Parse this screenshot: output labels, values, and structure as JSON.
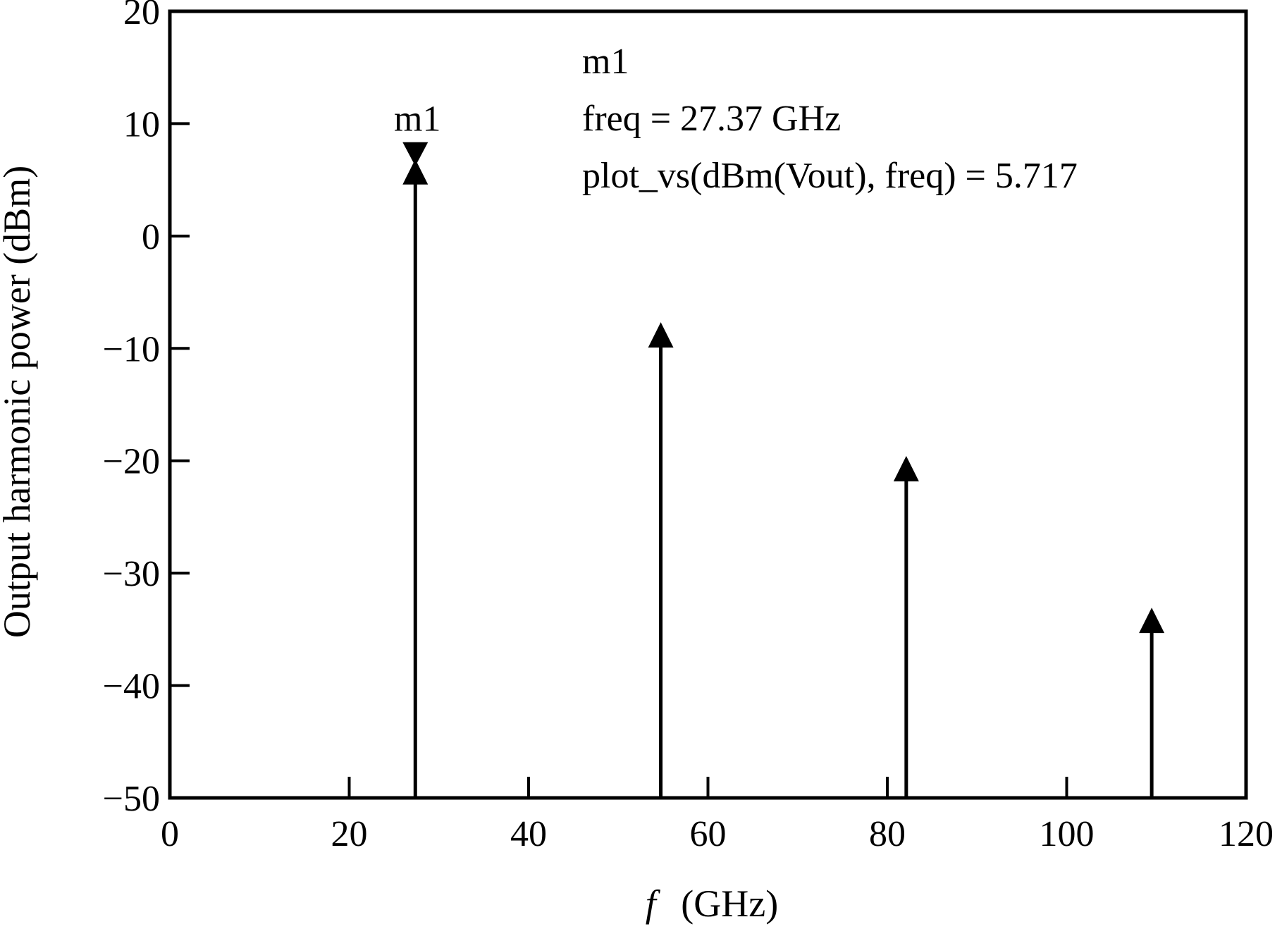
{
  "chart_data": {
    "type": "bar",
    "title": "",
    "xlabel_symbol": "f",
    "xlabel_unit": "(GHz)",
    "ylabel": "Output harmonic power (dBm)",
    "xlim": [
      0,
      120
    ],
    "ylim": [
      -50,
      20
    ],
    "x_ticks": [
      0,
      20,
      40,
      60,
      80,
      100,
      120
    ],
    "x_tick_labels": [
      "0",
      "20",
      "40",
      "60",
      "80",
      "100",
      "120"
    ],
    "y_ticks": [
      20,
      10,
      0,
      -10,
      -20,
      -30,
      -40,
      -50
    ],
    "y_tick_labels": [
      "20",
      "10",
      "0",
      "−10",
      "−20",
      "−30",
      "−40",
      "−50"
    ],
    "grid": false,
    "series": [
      {
        "x": [
          27.37,
          54.74,
          82.11,
          109.48
        ],
        "values": [
          5.717,
          -8.8,
          -20.7,
          -34.2
        ]
      }
    ],
    "marker": {
      "name": "m1",
      "x": 27.37,
      "y": 5.717,
      "label": "m1",
      "readout_lines": [
        "m1",
        "freq = 27.37 GHz",
        "plot_vs(dBm(Vout), freq) = 5.717"
      ]
    },
    "colors": {
      "line": "#000000",
      "background": "#ffffff"
    }
  }
}
